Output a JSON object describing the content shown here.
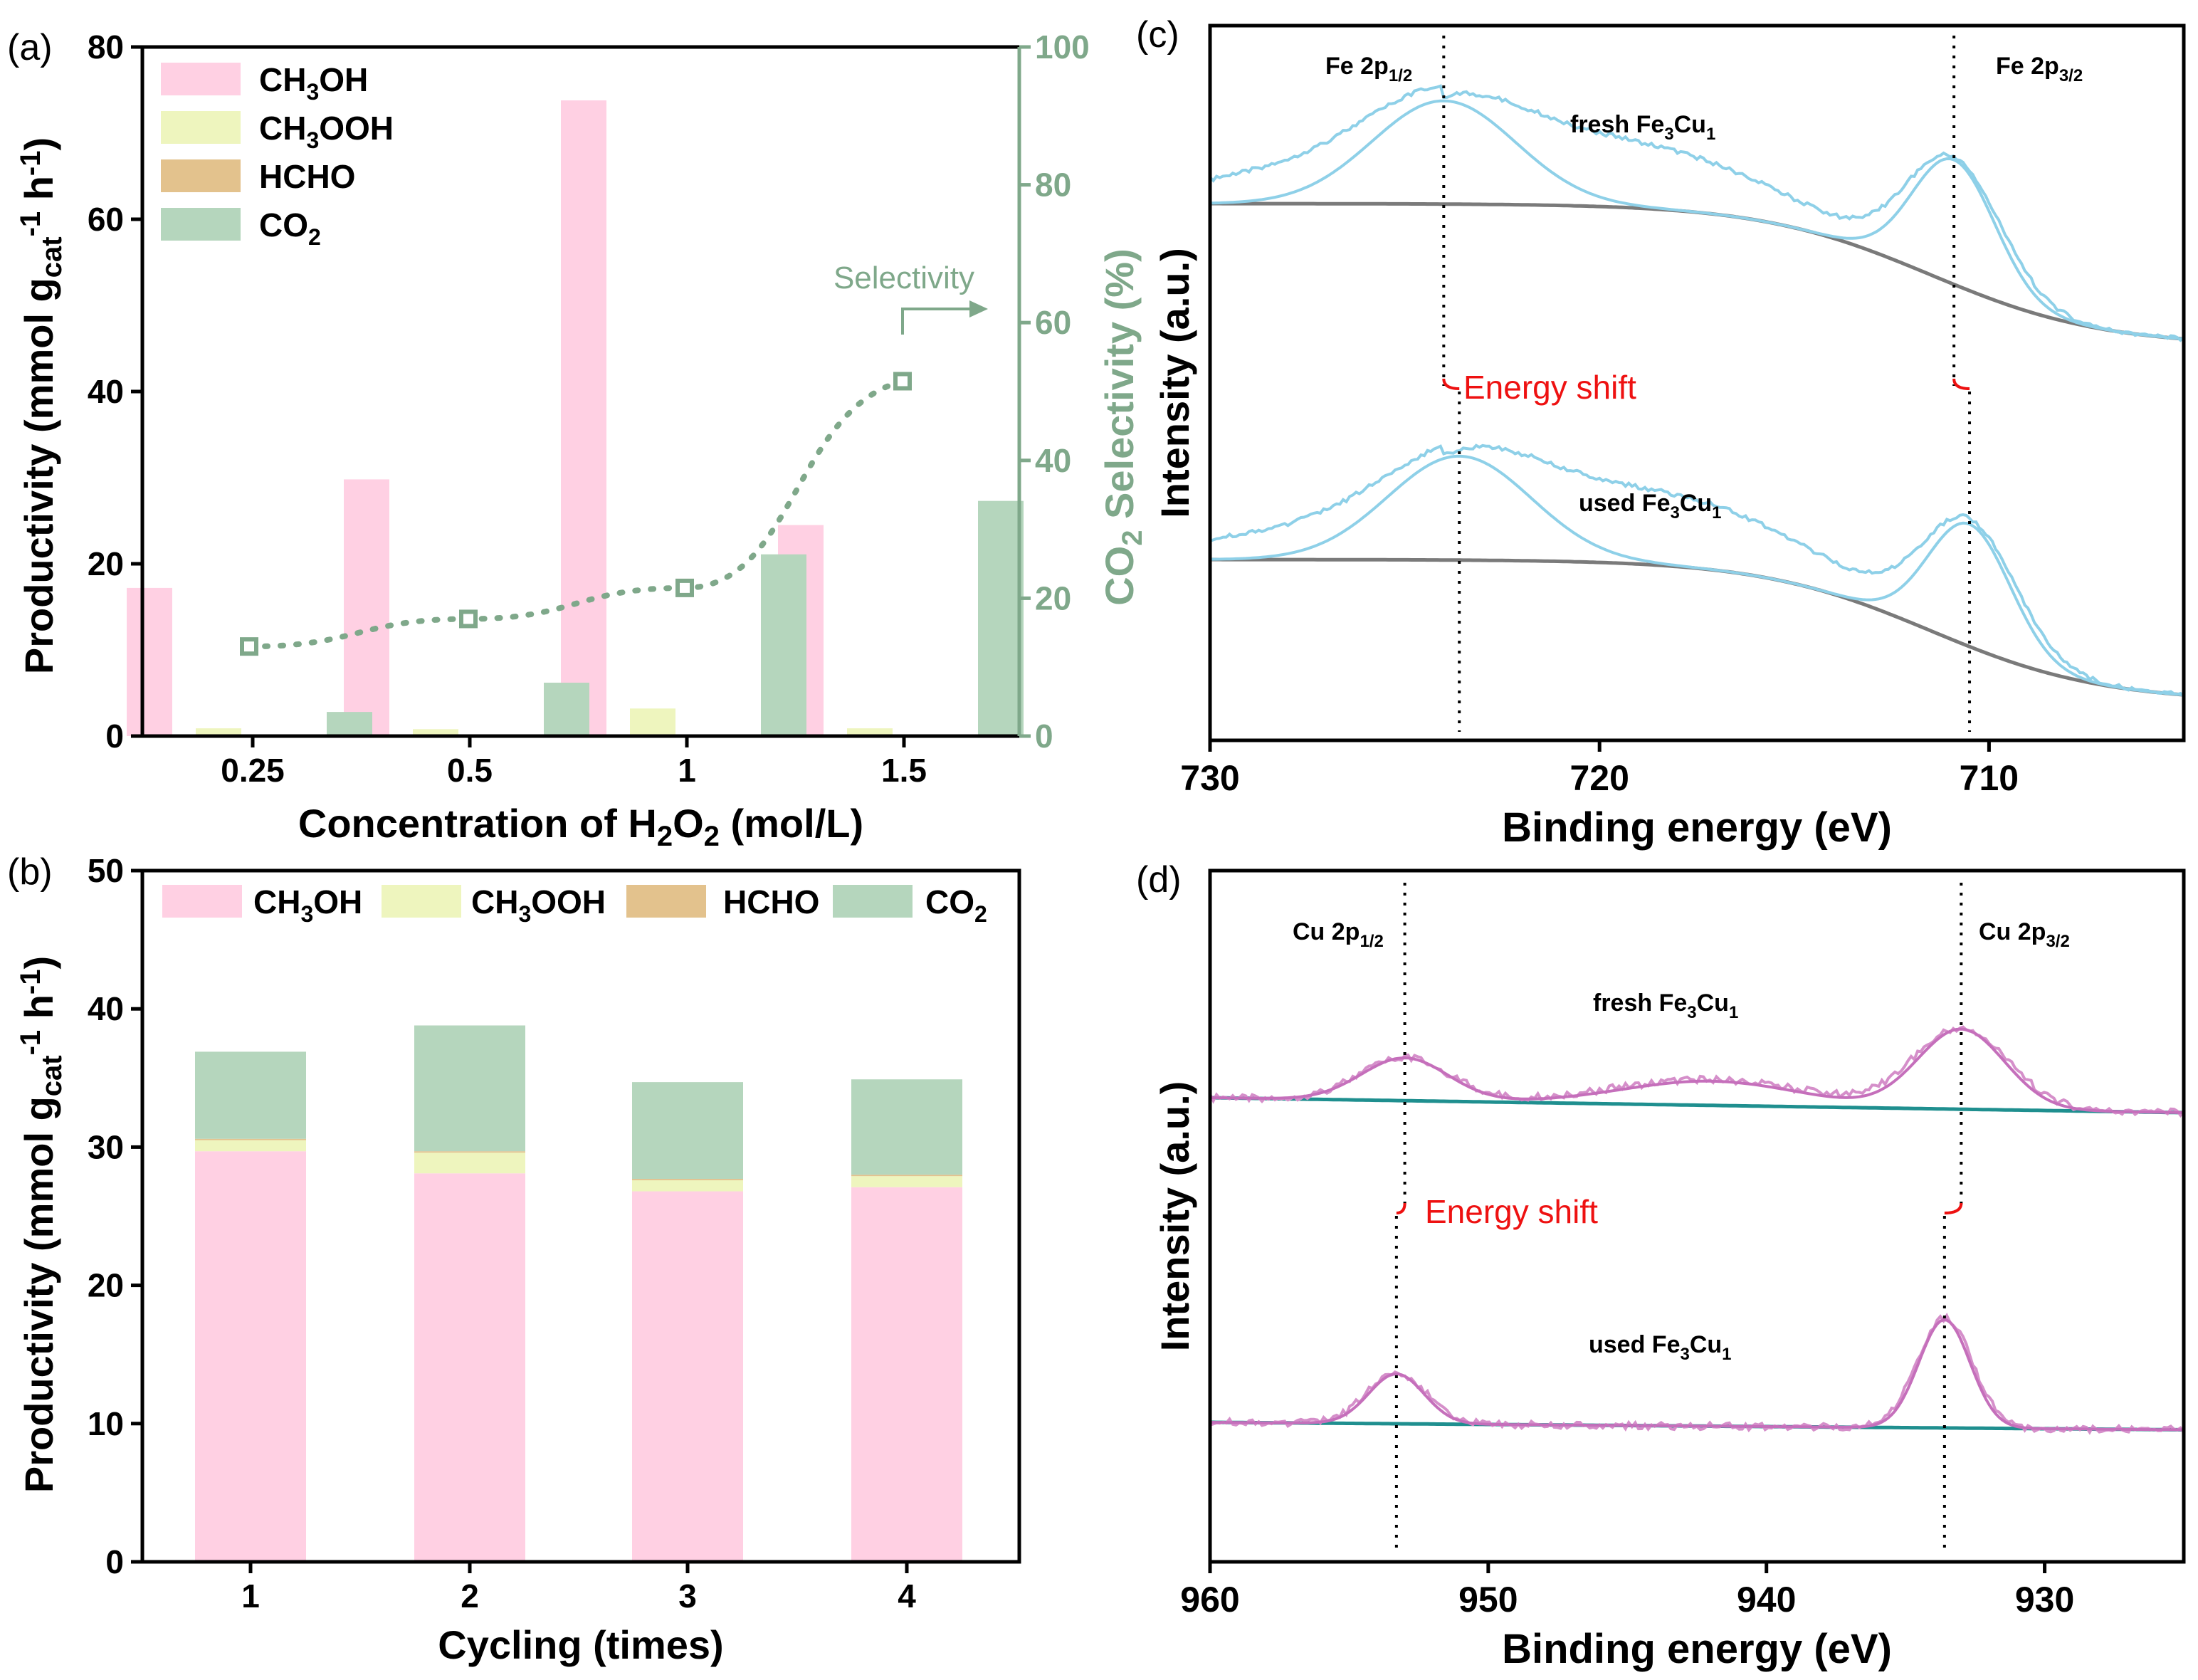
{
  "colors": {
    "ch3oh": "#ffd0e3",
    "ch3ooh": "#eef5be",
    "hcho": "#e3c28d",
    "co2": "#b5d6bd",
    "selectivity": "#7fa88a",
    "spectrum_fe": "#8ed0e8",
    "spectrum_cu": "#d58fca",
    "baseline_fe": "#7a7a7a",
    "baseline_cu": "#1f8f8f",
    "shift": "#ee1111",
    "axis": "#000000"
  },
  "chart_data": [
    {
      "panel": "(a)",
      "type": "bar",
      "categories": [
        "0.25",
        "0.5",
        "1",
        "1.5"
      ],
      "series": [
        {
          "name": "CH3OH",
          "values": [
            17.2,
            29.8,
            73.8,
            24.5
          ]
        },
        {
          "name": "CH3OOH",
          "values": [
            0.9,
            0.8,
            3.2,
            0.9
          ]
        },
        {
          "name": "HCHO",
          "values": [
            0.1,
            0.1,
            0.2,
            0.1
          ]
        },
        {
          "name": "CO2",
          "values": [
            2.8,
            6.2,
            21.1,
            27.3
          ]
        }
      ],
      "selectivity": {
        "name": "Selectivity",
        "values": [
          13,
          17,
          21.5,
          51.5
        ]
      },
      "xlabel": "Concentration of H2O2 (mol/L)",
      "ylabel": "Productivity (mmol gcat-1 h-1)",
      "y2label": "CO2 Selectivity (%)",
      "ylim": [
        0,
        80
      ],
      "y2lim": [
        0,
        100
      ],
      "yticks": [
        "0",
        "20",
        "40",
        "60",
        "80"
      ],
      "y2ticks": [
        "0",
        "20",
        "40",
        "60",
        "80",
        "100"
      ],
      "legend": [
        {
          "main": "CH",
          "sub": "3",
          "rest": "OH"
        },
        {
          "main": "CH",
          "sub": "3",
          "rest": "OOH"
        },
        {
          "main": "HCHO",
          "sub": "",
          "rest": ""
        },
        {
          "main": "CO",
          "sub": "2",
          "rest": ""
        }
      ],
      "selectivity_label": "Selectivity"
    },
    {
      "panel": "(b)",
      "type": "bar",
      "stacked": true,
      "categories": [
        "1",
        "2",
        "3",
        "4"
      ],
      "series": [
        {
          "name": "CH3OH",
          "values": [
            29.7,
            28.1,
            26.8,
            27.1
          ]
        },
        {
          "name": "CH3OOH",
          "values": [
            0.8,
            1.5,
            0.8,
            0.8
          ]
        },
        {
          "name": "HCHO",
          "values": [
            0.1,
            0.1,
            0.1,
            0.1
          ]
        },
        {
          "name": "CO2",
          "values": [
            6.3,
            9.1,
            7.0,
            6.9
          ]
        }
      ],
      "xlabel": "Cycling (times)",
      "ylabel": "Productivity (mmol gcat-1 h-1)",
      "ylim": [
        0,
        50
      ],
      "yticks": [
        "0",
        "10",
        "20",
        "30",
        "40",
        "50"
      ],
      "legend": [
        {
          "main": "CH",
          "sub": "3",
          "rest": "OH"
        },
        {
          "main": "CH",
          "sub": "3",
          "rest": "OOH"
        },
        {
          "main": "HCHO",
          "sub": "",
          "rest": ""
        },
        {
          "main": "CO",
          "sub": "2",
          "rest": ""
        }
      ]
    },
    {
      "panel": "(c)",
      "type": "line",
      "xlabel": "Binding energy (eV)",
      "ylabel": "Intensity (a.u.)",
      "xlim": [
        730,
        705
      ],
      "xticks": [
        "730",
        "720",
        "710"
      ],
      "peaks": [
        {
          "label": "Fe 2p",
          "sub": "1/2",
          "fresh": 724.0,
          "used": 723.6
        },
        {
          "label": "Fe 2p",
          "sub": "3/2",
          "fresh": 710.9,
          "used": 710.5
        }
      ],
      "spectra": [
        {
          "name": "fresh Fe3Cu1",
          "label_main": "fresh Fe",
          "sub1": "3",
          "mid": "Cu",
          "sub2": "1"
        },
        {
          "name": "used Fe3Cu1",
          "label_main": "used Fe",
          "sub1": "3",
          "mid": "Cu",
          "sub2": "1"
        }
      ],
      "annotation": "Energy shift"
    },
    {
      "panel": "(d)",
      "type": "line",
      "xlabel": "Binding energy (eV)",
      "ylabel": "Intensity (a.u.)",
      "xlim": [
        960,
        925
      ],
      "xticks": [
        "960",
        "950",
        "940",
        "930"
      ],
      "peaks": [
        {
          "label": "Cu 2p",
          "sub": "1/2",
          "fresh": 953.0,
          "used": 953.3
        },
        {
          "label": "Cu 2p",
          "sub": "3/2",
          "fresh": 933.0,
          "used": 933.6
        }
      ],
      "spectra": [
        {
          "name": "fresh Fe3Cu1",
          "label_main": "fresh Fe",
          "sub1": "3",
          "mid": "Cu",
          "sub2": "1"
        },
        {
          "name": "used Fe3Cu1",
          "label_main": "used Fe",
          "sub1": "3",
          "mid": "Cu",
          "sub2": "1"
        }
      ],
      "annotation": "Energy shift"
    }
  ]
}
